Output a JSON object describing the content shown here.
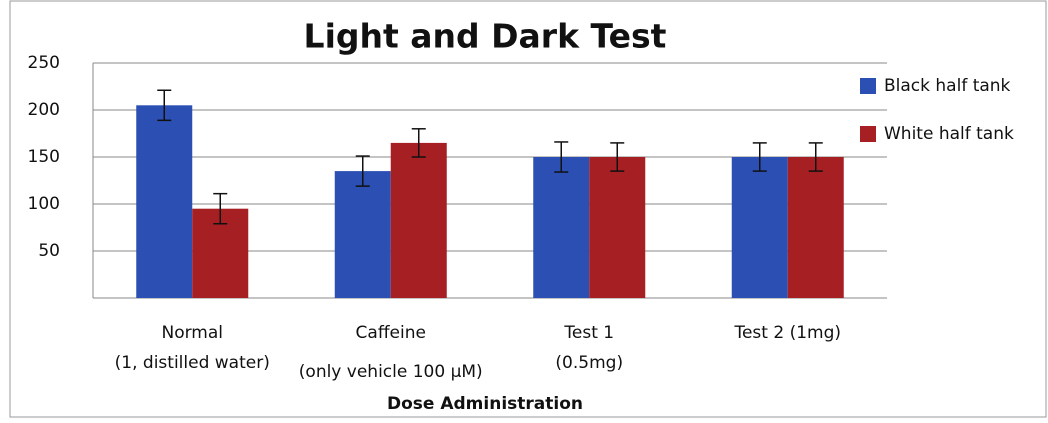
{
  "chart_data": {
    "type": "bar",
    "title": "Light and Dark Test",
    "x_label": "Dose Administration",
    "categories": [
      [
        "Normal",
        "(1, distilled water)"
      ],
      [
        "Caffeine",
        "(only vehicle 100 µM)"
      ],
      [
        "Test 1",
        "(0.5mg)"
      ],
      [
        "Test 2 (1mg)"
      ]
    ],
    "series": [
      {
        "name": "Black half tank",
        "color": "#2b4fb3",
        "values": [
          205,
          135,
          150,
          150
        ],
        "errors": [
          16,
          16,
          16,
          15
        ]
      },
      {
        "name": "White half tank",
        "color": "#a61f22",
        "values": [
          95,
          165,
          150,
          150
        ],
        "errors": [
          16,
          15,
          15,
          15
        ]
      }
    ],
    "ylim": [
      0,
      250
    ],
    "yticks": [
      50,
      100,
      150,
      200,
      250
    ],
    "grid": true,
    "legend": "right"
  }
}
